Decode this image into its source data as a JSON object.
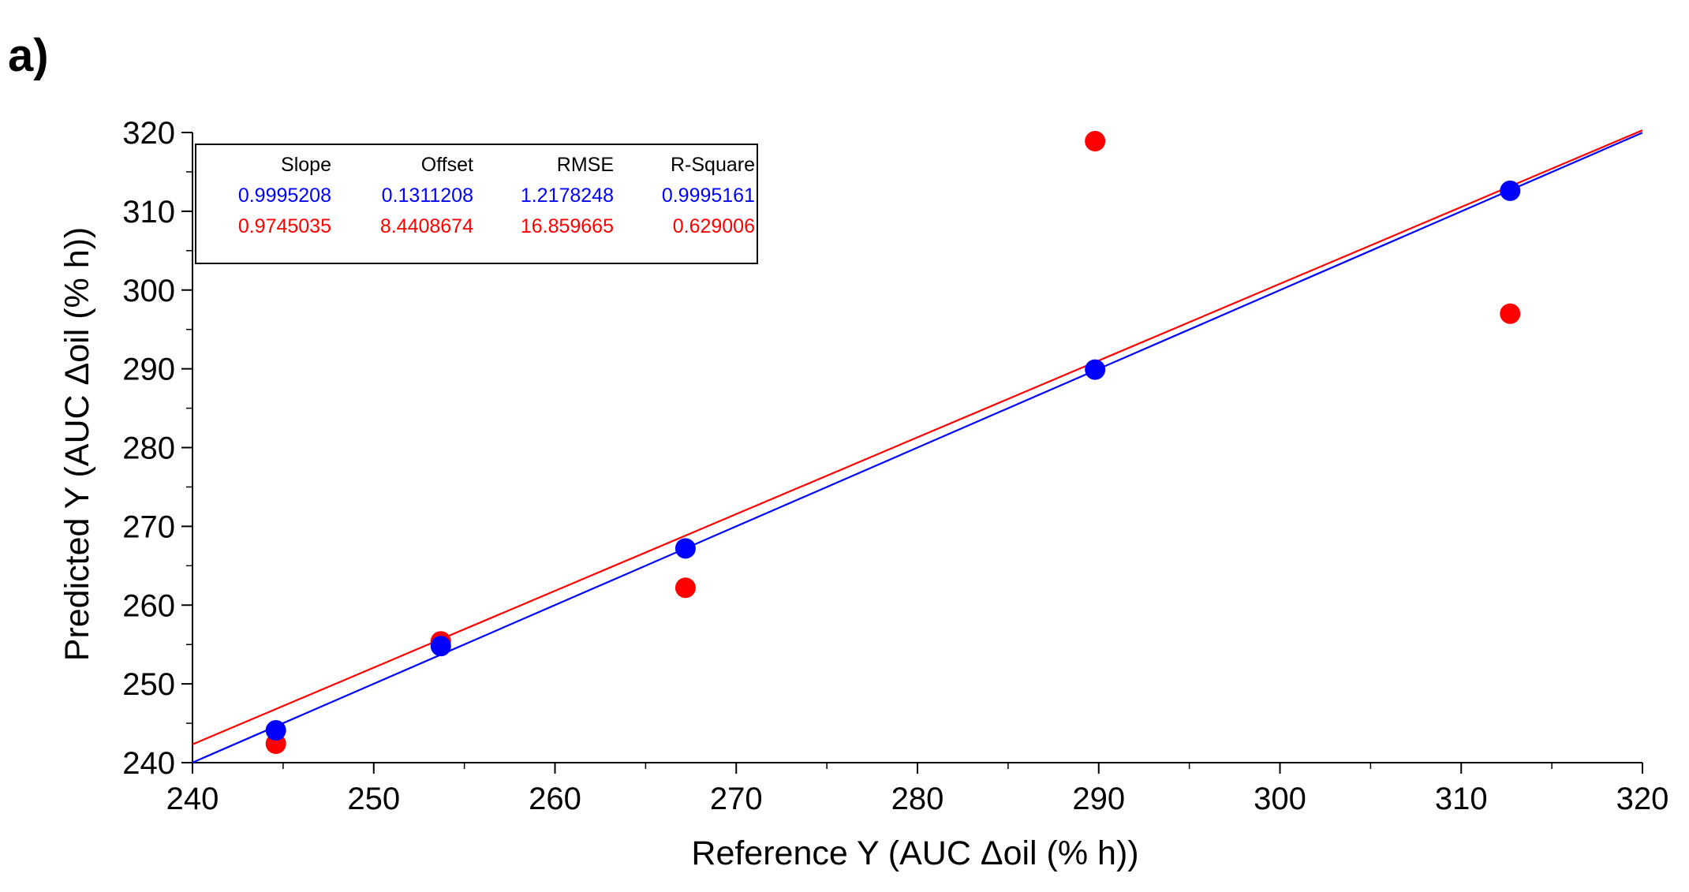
{
  "panel_label": "a)",
  "chart_data": {
    "type": "scatter",
    "xlabel": "Reference Y (AUC Δoil (% h))",
    "ylabel": "Predicted Y (AUC Δoil (% h))",
    "xlim": [
      240,
      320
    ],
    "ylim": [
      240,
      320
    ],
    "xticks": [
      "240",
      "250",
      "260",
      "270",
      "280",
      "290",
      "300",
      "310",
      "320"
    ],
    "yticks": [
      "240",
      "250",
      "260",
      "270",
      "280",
      "290",
      "300",
      "310",
      "320"
    ],
    "grid": false,
    "series": [
      {
        "color": "#0000ff",
        "points": [
          [
            244.6,
            244.1
          ],
          [
            253.7,
            254.8
          ],
          [
            267.2,
            267.2
          ],
          [
            289.8,
            289.9
          ],
          [
            312.7,
            312.6
          ]
        ],
        "fit": {
          "slope": 0.9995208,
          "offset": 0.1311208
        }
      },
      {
        "color": "#ff0000",
        "points": [
          [
            244.6,
            242.4
          ],
          [
            253.7,
            255.4
          ],
          [
            267.2,
            262.2
          ],
          [
            289.8,
            318.9
          ],
          [
            312.7,
            297.0
          ]
        ],
        "fit": {
          "slope": 0.9745035,
          "offset": 8.4408674
        }
      }
    ],
    "stats_table": {
      "placement": "top-left",
      "headers": [
        "Slope",
        "Offset",
        "RMSE",
        "R-Square"
      ],
      "rows": [
        {
          "color": "#0000ff",
          "values": [
            "0.9995208",
            "0.1311208",
            "1.2178248",
            "0.9995161"
          ]
        },
        {
          "color": "#ff0000",
          "values": [
            "0.9745035",
            "8.4408674",
            "16.859665",
            "0.629006"
          ]
        }
      ]
    }
  }
}
